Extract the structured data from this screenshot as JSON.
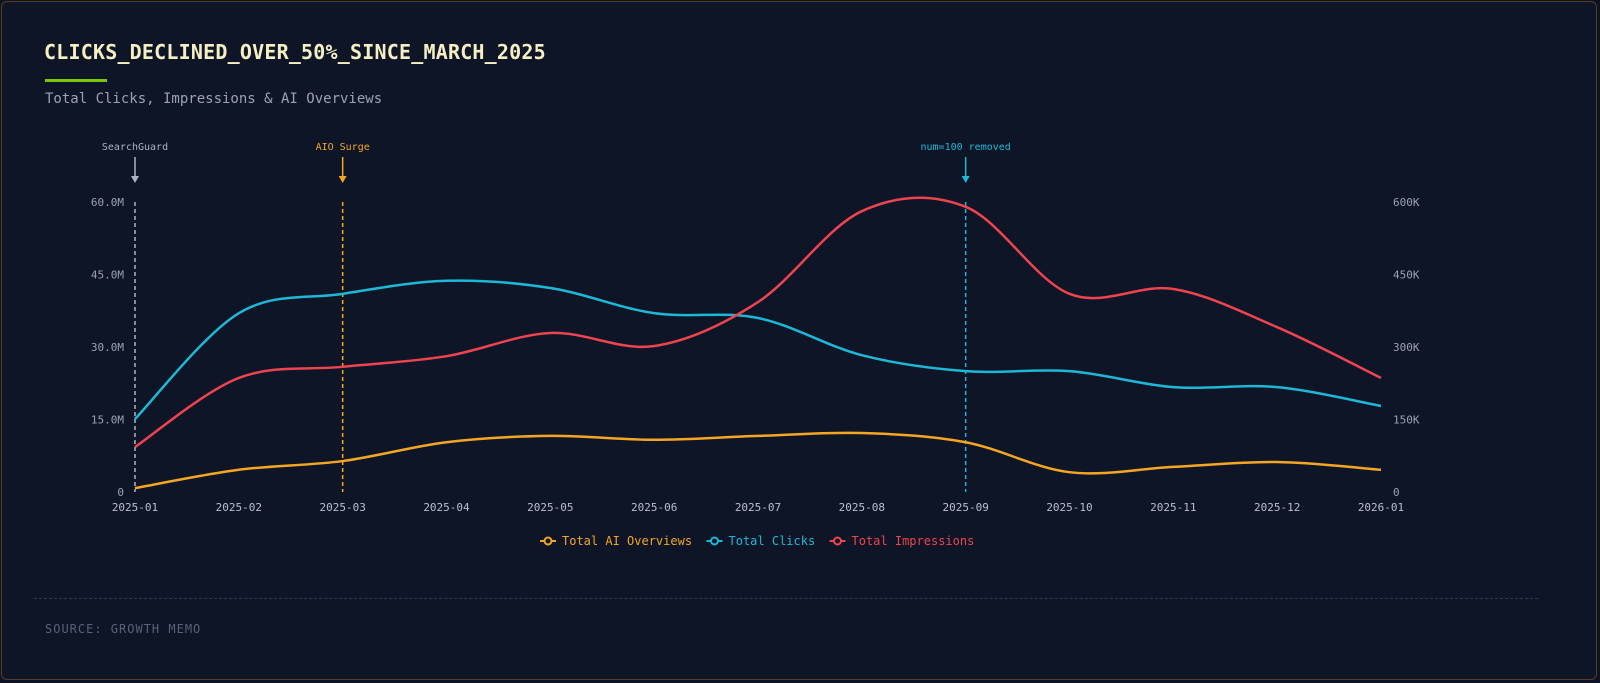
{
  "header": {
    "title": "CLICKS_DECLINED_OVER_50%_SINCE_MARCH_2025",
    "subtitle": "Total Clicks, Impressions & AI Overviews"
  },
  "footer": {
    "source": "SOURCE: GROWTH MEMO"
  },
  "colors": {
    "accent": "#7ac70c",
    "ai_overviews": "#f5a623",
    "clicks": "#1eb8d6",
    "impressions": "#ef4450"
  },
  "chart_data": {
    "type": "line",
    "title": "CLICKS_DECLINED_OVER_50%_SINCE_MARCH_2025",
    "subtitle": "Total Clicks, Impressions & AI Overviews",
    "x": [
      "2025-01",
      "2025-02",
      "2025-03",
      "2025-04",
      "2025-05",
      "2025-06",
      "2025-07",
      "2025-08",
      "2025-09",
      "2025-10",
      "2025-11",
      "2025-12",
      "2026-01"
    ],
    "y_left": {
      "ticks": [
        "0",
        "15.0M",
        "30.0M",
        "45.0M",
        "60.0M"
      ],
      "range": [
        0,
        60000000
      ]
    },
    "y_right": {
      "ticks": [
        "0",
        "150K",
        "300K",
        "450K",
        "600K"
      ],
      "range": [
        0,
        600000
      ]
    },
    "grid": false,
    "legend": "bottom",
    "series": [
      {
        "name": "Total AI Overviews",
        "axis": "right",
        "color": "#f5a623",
        "values": [
          8000,
          46000,
          64000,
          103000,
          116000,
          108000,
          116000,
          122000,
          103000,
          41000,
          52000,
          62000,
          46000
        ]
      },
      {
        "name": "Total Clicks",
        "axis": "right",
        "color": "#1eb8d6",
        "values": [
          151000,
          370000,
          410000,
          437000,
          422000,
          370000,
          360000,
          283000,
          250000,
          250000,
          217000,
          217000,
          178000
        ]
      },
      {
        "name": "Total Impressions",
        "axis": "left",
        "color": "#ef4450",
        "values": [
          9300000,
          23600000,
          25900000,
          28100000,
          32900000,
          30200000,
          39300000,
          58100000,
          59000000,
          41000000,
          42000000,
          34100000,
          23600000
        ]
      }
    ],
    "annotations": [
      {
        "x": "2025-01",
        "label": "SearchGuard",
        "color": "#aab4c4"
      },
      {
        "x": "2025-03",
        "label": "AIO Surge",
        "color": "#f5a623"
      },
      {
        "x": "2025-09",
        "label": "num=100 removed",
        "color": "#1eb8d6"
      }
    ]
  }
}
